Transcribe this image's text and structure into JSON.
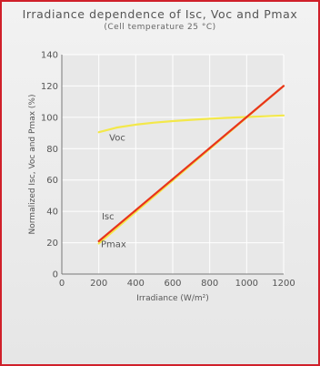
{
  "chart_data": {
    "type": "line",
    "title": "Irradiance dependence of Isc, Voc and Pmax",
    "subtitle": "(Cell temperature 25 °C)",
    "xlabel": "Irradiance  (W/m²)",
    "ylabel": "Normalized Isc, Voc and Pmax (%)",
    "xlim": [
      0,
      1200
    ],
    "ylim": [
      0,
      140
    ],
    "xticks": [
      0,
      200,
      400,
      600,
      800,
      1000,
      1200
    ],
    "yticks": [
      0,
      20,
      40,
      60,
      80,
      100,
      120,
      140
    ],
    "grid": true,
    "series": [
      {
        "name": "Voc",
        "color": "#f3e84a",
        "x": [
          200,
          300,
          400,
          500,
          600,
          700,
          800,
          900,
          1000,
          1100,
          1200
        ],
        "y": [
          90.5,
          93.5,
          95.3,
          96.6,
          97.6,
          98.4,
          99.1,
          99.7,
          100.2,
          100.7,
          101.2
        ]
      },
      {
        "name": "Pmax",
        "color": "#f3e84a",
        "x": [
          200,
          1200
        ],
        "y": [
          19.5,
          120
        ]
      },
      {
        "name": "Isc",
        "color": "#e8341c",
        "x": [
          200,
          1200
        ],
        "y": [
          21,
          120
        ]
      }
    ],
    "annotations": [
      {
        "text": "Voc",
        "x": 300,
        "y": 85
      },
      {
        "text": "Isc",
        "x": 250,
        "y": 35
      },
      {
        "text": "Pmax",
        "x": 280,
        "y": 17
      }
    ]
  }
}
